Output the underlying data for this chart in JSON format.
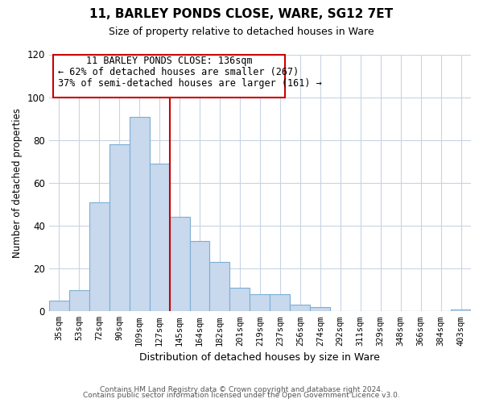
{
  "title": "11, BARLEY PONDS CLOSE, WARE, SG12 7ET",
  "subtitle": "Size of property relative to detached houses in Ware",
  "xlabel": "Distribution of detached houses by size in Ware",
  "ylabel": "Number of detached properties",
  "categories": [
    "35sqm",
    "53sqm",
    "72sqm",
    "90sqm",
    "109sqm",
    "127sqm",
    "145sqm",
    "164sqm",
    "182sqm",
    "201sqm",
    "219sqm",
    "237sqm",
    "256sqm",
    "274sqm",
    "292sqm",
    "311sqm",
    "329sqm",
    "348sqm",
    "366sqm",
    "384sqm",
    "403sqm"
  ],
  "values": [
    5,
    10,
    51,
    78,
    91,
    69,
    44,
    33,
    23,
    11,
    8,
    8,
    3,
    2,
    0,
    0,
    0,
    0,
    0,
    0,
    1
  ],
  "bar_color": "#c8d8ed",
  "bar_edge_color": "#7bafd4",
  "vline_x": 5.5,
  "vline_color": "#cc0000",
  "annotation_title": "11 BARLEY PONDS CLOSE: 136sqm",
  "annotation_line1": "← 62% of detached houses are smaller (267)",
  "annotation_line2": "37% of semi-detached houses are larger (161) →",
  "annotation_box_color": "#cc0000",
  "annotation_box_fill": "white",
  "ylim": [
    0,
    120
  ],
  "yticks": [
    0,
    20,
    40,
    60,
    80,
    100,
    120
  ],
  "footer1": "Contains HM Land Registry data © Crown copyright and database right 2024.",
  "footer2": "Contains public sector information licensed under the Open Government Licence v3.0.",
  "bg_color": "white",
  "grid_color": "#c8d4e4"
}
